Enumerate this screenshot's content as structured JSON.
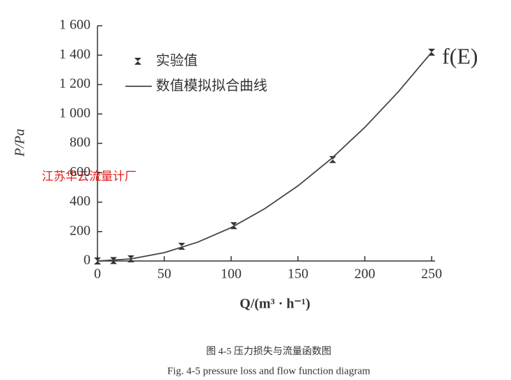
{
  "chart_data": {
    "type": "scatter",
    "ylabel": "P/Pa",
    "xlabel": "Q/(m³ · h⁻¹)",
    "xlim": [
      0,
      250
    ],
    "xticks": [
      0,
      50,
      100,
      150,
      200,
      250
    ],
    "ylim": [
      0,
      1600
    ],
    "yticks": [
      0,
      200,
      400,
      600,
      800,
      {
        "value": 1000,
        "label": "1 000"
      },
      {
        "value": 1200,
        "label": "1 200"
      },
      {
        "value": 1400,
        "label": "1 400"
      },
      {
        "value": 1600,
        "label": "1 600"
      }
    ],
    "series": [
      {
        "name": "实验值",
        "type": "scatter",
        "color": "#333333",
        "x": [
          0,
          12,
          25,
          63,
          102,
          176,
          250
        ],
        "values": [
          0,
          3,
          15,
          100,
          240,
          690,
          1420
        ]
      },
      {
        "name": "数值模拟拟合曲线",
        "type": "line",
        "color": "#444444",
        "x": [
          0,
          25,
          50,
          75,
          100,
          125,
          150,
          175,
          200,
          225,
          250
        ],
        "values": [
          0,
          14,
          57,
          128,
          227,
          355,
          511,
          696,
          909,
          1150,
          1420
        ]
      }
    ],
    "annotation": "f(E)",
    "watermark": "江苏华云流量计厂"
  },
  "captions": [
    "图 4-5 压力损失与流量函数图",
    "Fig. 4-5 pressure loss and flow function diagram"
  ]
}
